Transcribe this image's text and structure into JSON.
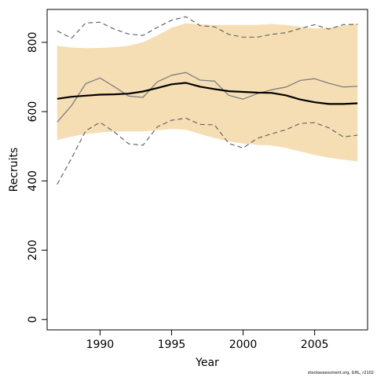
{
  "chart_data": {
    "type": "line",
    "xlabel": "Year",
    "ylabel": "Recruits",
    "xlim": [
      1986.3,
      2008.7
    ],
    "ylim": [
      -30,
      895
    ],
    "x_ticks": [
      1990,
      1995,
      2000,
      2005
    ],
    "y_ticks": [
      0,
      200,
      400,
      600,
      800
    ],
    "x_tick_labels": [
      "1990",
      "1995",
      "2000",
      "2005"
    ],
    "y_tick_labels": [
      "0",
      "200",
      "400",
      "600",
      "800"
    ],
    "x": [
      1987,
      1988,
      1989,
      1990,
      1991,
      1992,
      1993,
      1994,
      1995,
      1996,
      1997,
      1998,
      1999,
      2000,
      2001,
      2002,
      2003,
      2004,
      2005,
      2006,
      2007,
      2008
    ],
    "band": {
      "color": "#f5deb3",
      "upper": [
        790,
        785,
        783,
        784,
        786,
        790,
        800,
        820,
        842,
        855,
        852,
        850,
        850,
        850,
        850,
        853,
        850,
        845,
        840,
        842,
        848,
        855
      ],
      "lower": [
        518,
        528,
        535,
        540,
        542,
        543,
        543,
        546,
        550,
        548,
        535,
        524,
        514,
        508,
        504,
        502,
        495,
        485,
        475,
        467,
        461,
        456
      ]
    },
    "series": [
      {
        "style": "solid-thick",
        "color": "#000000",
        "values": [
          637,
          643,
          646,
          649,
          650,
          652,
          658,
          668,
          679,
          683,
          672,
          665,
          659,
          657,
          655,
          654,
          647,
          635,
          627,
          622,
          622,
          624
        ]
      },
      {
        "style": "solid-thin",
        "color": "#7f7f7f",
        "values": [
          570,
          617,
          681,
          697,
          672,
          645,
          641,
          686,
          705,
          713,
          691,
          688,
          647,
          636,
          652,
          663,
          671,
          690,
          695,
          682,
          671,
          673
        ]
      },
      {
        "style": "dashed-upper",
        "color": "#666666",
        "values": [
          833,
          812,
          856,
          858,
          838,
          824,
          820,
          843,
          864,
          874,
          848,
          845,
          823,
          815,
          815,
          823,
          828,
          840,
          851,
          838,
          851,
          852
        ]
      },
      {
        "style": "dashed-lower",
        "color": "#666666",
        "values": [
          390,
          465,
          545,
          569,
          541,
          507,
          503,
          556,
          575,
          581,
          563,
          562,
          508,
          495,
          523,
          536,
          548,
          566,
          568,
          553,
          527,
          532
        ]
      }
    ]
  },
  "footer": {
    "credit": "stockassessment.org, GHL, r2102"
  }
}
